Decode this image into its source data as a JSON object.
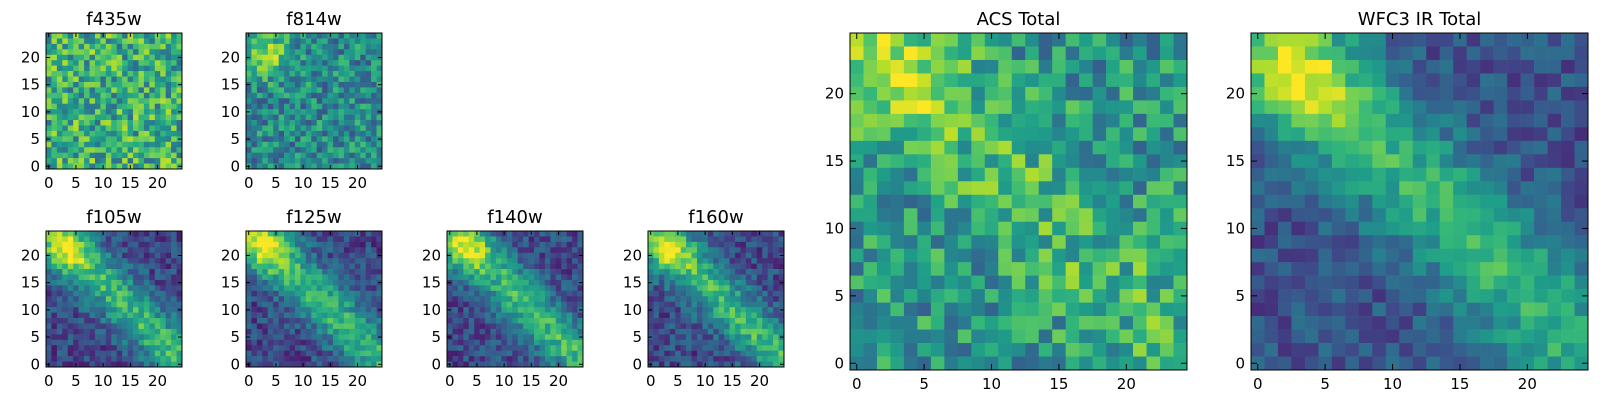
{
  "figure": {
    "panels": [
      {
        "id": "f435w",
        "title": "f435w",
        "xticks": [
          "0",
          "5",
          "10",
          "15",
          "20"
        ],
        "yticks": [
          "0",
          "5",
          "10",
          "15",
          "20"
        ]
      },
      {
        "id": "f814w",
        "title": "f814w",
        "xticks": [
          "0",
          "5",
          "10",
          "15",
          "20"
        ],
        "yticks": [
          "0",
          "5",
          "10",
          "15",
          "20"
        ]
      },
      {
        "id": "f105w",
        "title": "f105w",
        "xticks": [
          "0",
          "5",
          "10",
          "15",
          "20"
        ],
        "yticks": [
          "0",
          "5",
          "10",
          "15",
          "20"
        ]
      },
      {
        "id": "f125w",
        "title": "f125w",
        "xticks": [
          "0",
          "5",
          "10",
          "15",
          "20"
        ],
        "yticks": [
          "0",
          "5",
          "10",
          "15",
          "20"
        ]
      },
      {
        "id": "f140w",
        "title": "f140w",
        "xticks": [
          "0",
          "5",
          "10",
          "15",
          "20"
        ],
        "yticks": [
          "0",
          "5",
          "10",
          "15",
          "20"
        ]
      },
      {
        "id": "f160w",
        "title": "f160w",
        "xticks": [
          "0",
          "5",
          "10",
          "15",
          "20"
        ],
        "yticks": [
          "0",
          "5",
          "10",
          "15",
          "20"
        ]
      },
      {
        "id": "acs-total",
        "title": "ACS Total",
        "xticks": [
          "0",
          "5",
          "10",
          "15",
          "20"
        ],
        "yticks": [
          "0",
          "5",
          "10",
          "15",
          "20"
        ]
      },
      {
        "id": "wfc3-ir-total",
        "title": "WFC3 IR Total",
        "xticks": [
          "0",
          "5",
          "10",
          "15",
          "20"
        ],
        "yticks": [
          "0",
          "5",
          "10",
          "15",
          "20"
        ]
      }
    ]
  },
  "chart_data": [
    {
      "type": "heatmap",
      "title": "f435w",
      "grid_size": 25,
      "xlim": [
        -0.5,
        24.5
      ],
      "ylim": [
        -0.5,
        24.5
      ],
      "colormap": "viridis",
      "values": null
    },
    {
      "type": "heatmap",
      "title": "f814w",
      "grid_size": 25,
      "xlim": [
        -0.5,
        24.5
      ],
      "ylim": [
        -0.5,
        24.5
      ],
      "colormap": "viridis",
      "values": null
    },
    {
      "type": "heatmap",
      "title": "f105w",
      "grid_size": 25,
      "xlim": [
        -0.5,
        24.5
      ],
      "ylim": [
        -0.5,
        24.5
      ],
      "colormap": "viridis",
      "values": null
    },
    {
      "type": "heatmap",
      "title": "f125w",
      "grid_size": 25,
      "xlim": [
        -0.5,
        24.5
      ],
      "ylim": [
        -0.5,
        24.5
      ],
      "colormap": "viridis",
      "values": null
    },
    {
      "type": "heatmap",
      "title": "f140w",
      "grid_size": 25,
      "xlim": [
        -0.5,
        24.5
      ],
      "ylim": [
        -0.5,
        24.5
      ],
      "colormap": "viridis",
      "values": null
    },
    {
      "type": "heatmap",
      "title": "f160w",
      "grid_size": 25,
      "xlim": [
        -0.5,
        24.5
      ],
      "ylim": [
        -0.5,
        24.5
      ],
      "colormap": "viridis",
      "values": null
    },
    {
      "type": "heatmap",
      "title": "ACS Total",
      "grid_size": 25,
      "xlim": [
        -0.5,
        24.5
      ],
      "ylim": [
        -0.5,
        24.5
      ],
      "colormap": "viridis",
      "values": null
    },
    {
      "type": "heatmap",
      "title": "WFC3 IR Total",
      "grid_size": 25,
      "xlim": [
        -0.5,
        24.5
      ],
      "ylim": [
        -0.5,
        24.5
      ],
      "colormap": "viridis",
      "values": null
    }
  ]
}
